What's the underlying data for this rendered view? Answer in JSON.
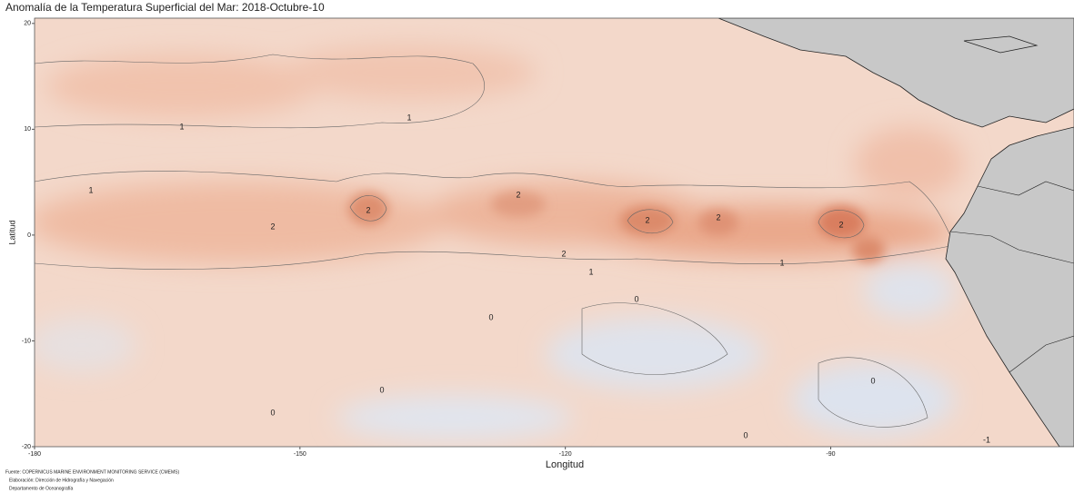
{
  "chart_data": {
    "type": "map",
    "title": "Anomalía de la Temperatura Superficial del Mar: 2018-Octubre-10",
    "x_label": "Longitud",
    "y_label": "Latitud",
    "xlim": [
      -180,
      -62.5
    ],
    "ylim": [
      -20,
      20.5
    ],
    "xticks": [
      -180,
      -150,
      -120,
      -90
    ],
    "yticks": [
      -20,
      -10,
      0,
      10,
      20
    ],
    "contour_labels": [
      2,
      2,
      2,
      2,
      2,
      2,
      2,
      1,
      1,
      1,
      1,
      1,
      0,
      0,
      0,
      0,
      0,
      0,
      -1
    ],
    "footnotes": [
      "Fuente: COPERNICUS MARINE ENVIRONMENT MONITORING SERVICE (CMEMS)",
      "Elaboración: Dirección de Hidrografía y Navegación",
      "Departamento de Oceanografía"
    ]
  }
}
